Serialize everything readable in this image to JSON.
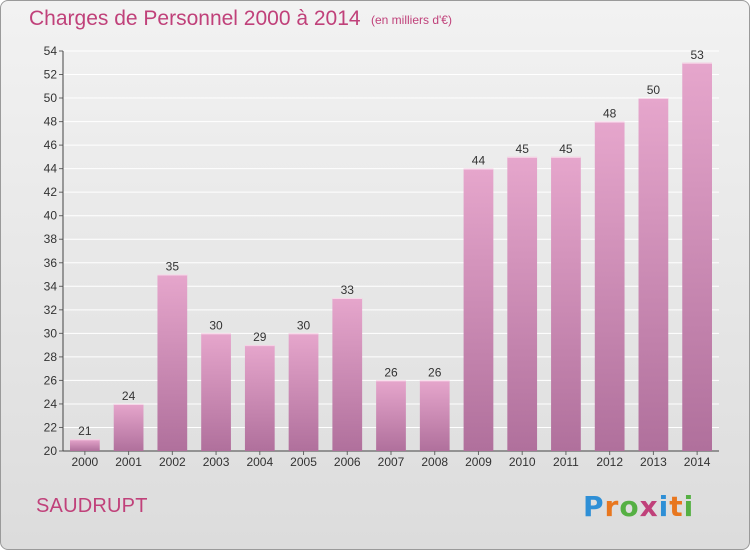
{
  "title": "Charges de Personnel 2000 à 2014",
  "subtitle": "(en milliers d'€)",
  "commune": "SAUDRUPT",
  "logo_text": "Proxiti",
  "colors": {
    "bar_top": "#e6a6cc",
    "bar_bottom": "#b0709c",
    "title": "#c0417a",
    "grid": "#ffffff"
  },
  "chart_data": {
    "type": "bar",
    "categories": [
      "2000",
      "2001",
      "2002",
      "2003",
      "2004",
      "2005",
      "2006",
      "2007",
      "2008",
      "2009",
      "2010",
      "2011",
      "2012",
      "2013",
      "2014"
    ],
    "values": [
      21,
      24,
      35,
      30,
      29,
      30,
      33,
      26,
      26,
      44,
      45,
      45,
      48,
      50,
      53
    ],
    "ylim": [
      20,
      54
    ],
    "yticks": [
      20,
      22,
      24,
      26,
      28,
      30,
      32,
      34,
      36,
      38,
      40,
      42,
      44,
      46,
      48,
      50,
      52,
      54
    ],
    "grid": true,
    "data_labels": true
  }
}
